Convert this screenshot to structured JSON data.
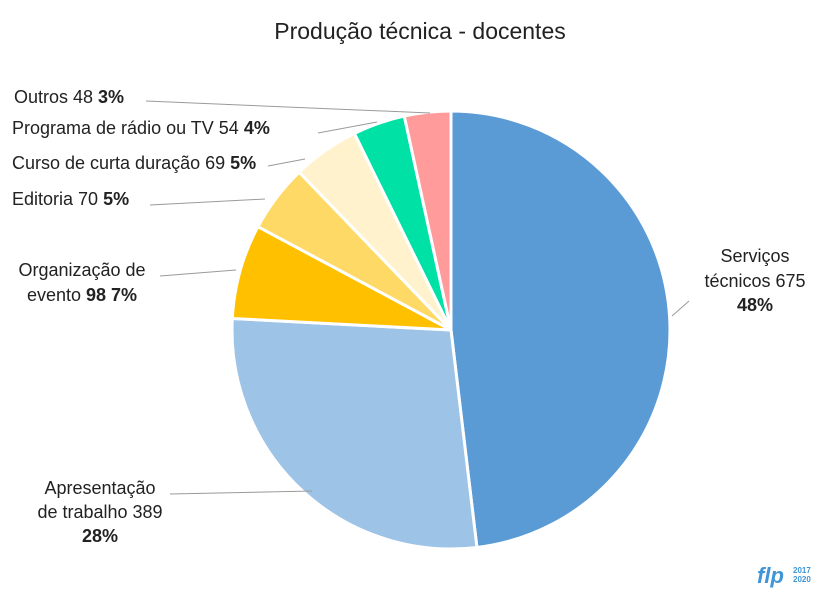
{
  "chart_data": {
    "type": "pie",
    "title": "Produção técnica - docentes",
    "legend": "none",
    "slices": [
      {
        "label": "Serviços técnicos",
        "value": 675,
        "pct": "48%",
        "color": "#5b9bd5"
      },
      {
        "label": "Apresentação de trabalho",
        "value": 389,
        "pct": "28%",
        "color": "#9dc3e6"
      },
      {
        "label": "Organização de evento",
        "value": 98,
        "pct": "7%",
        "color": "#ffc000"
      },
      {
        "label": "Editoria",
        "value": 70,
        "pct": "5%",
        "color": "#ffd966"
      },
      {
        "label": "Curso de curta duração",
        "value": 69,
        "pct": "5%",
        "color": "#fff2cc"
      },
      {
        "label": "Programa de rádio ou TV",
        "value": 54,
        "pct": "4%",
        "color": "#00e1a6"
      },
      {
        "label": "Outros",
        "value": 48,
        "pct": "3%",
        "color": "#ff9b9b"
      }
    ]
  },
  "logo": {
    "text": "flp",
    "years": [
      "2017",
      "2020"
    ]
  }
}
